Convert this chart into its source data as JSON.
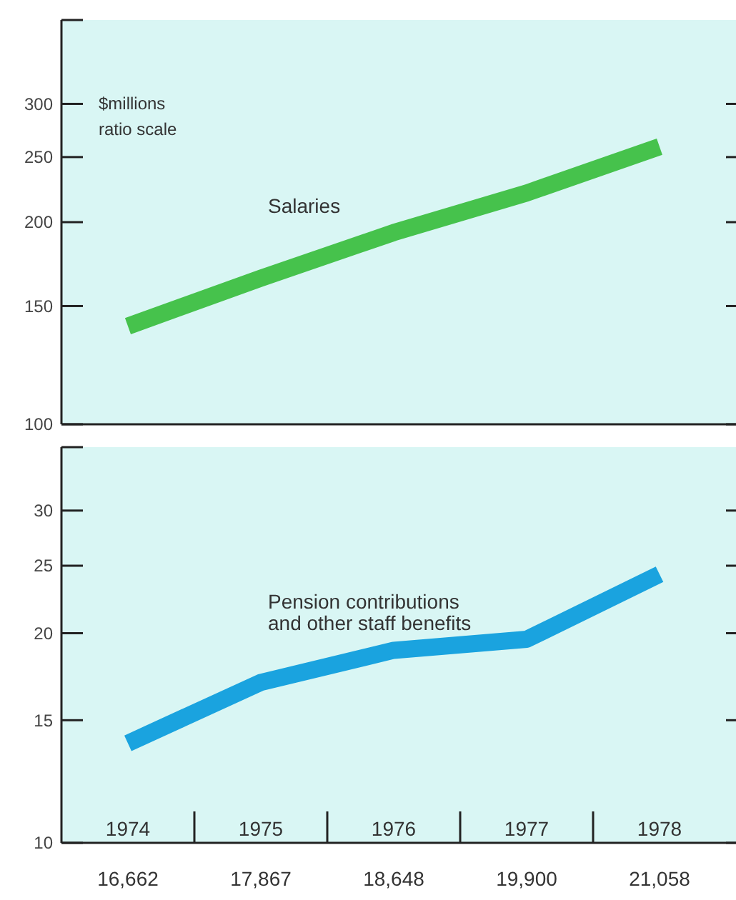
{
  "chart_data": [
    {
      "type": "line",
      "ylabel": "$millions ratio scale",
      "categories": [
        null,
        null,
        null,
        null,
        null
      ],
      "log": true,
      "ylim": [
        100,
        400
      ],
      "yticks": [
        100,
        150,
        200,
        250,
        300
      ],
      "tick_labels": "y",
      "grid": false,
      "marker": "none",
      "line_style": "solid",
      "series": [
        {
          "name": "Salaries",
          "color": "#46c24c",
          "values": [
            140,
            165,
            193,
            221,
            259
          ]
        }
      ]
    },
    {
      "type": "line",
      "categories": [
        "1974",
        "1975",
        "1976",
        "1977",
        "1978"
      ],
      "log": true,
      "ylim": [
        10,
        37
      ],
      "yticks": [
        10,
        15,
        20,
        25,
        30
      ],
      "grid": false,
      "marker": "none",
      "line_style": "solid",
      "series": [
        {
          "name": "Pension contributions and other staff benefits",
          "color": "#1aa3df",
          "values": [
            13.9,
            17.0,
            18.9,
            19.6,
            24.3
          ]
        }
      ],
      "annotations": [
        "16,662",
        "17,867",
        "18,648",
        "19,900",
        "21,058"
      ]
    }
  ]
}
